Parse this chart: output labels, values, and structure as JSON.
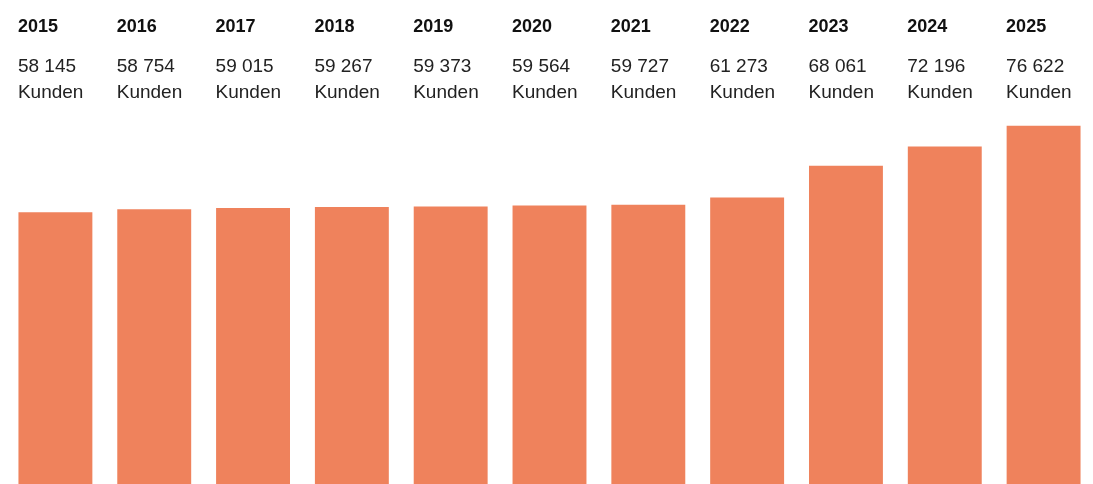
{
  "chart_data": {
    "type": "bar",
    "categories": [
      "2015",
      "2016",
      "2017",
      "2018",
      "2019",
      "2020",
      "2021",
      "2022",
      "2023",
      "2024",
      "2025"
    ],
    "values": [
      58145,
      58754,
      59015,
      59267,
      59373,
      59564,
      59727,
      61273,
      68061,
      72196,
      76622
    ],
    "value_labels": [
      "58 145 Kunden",
      "58 754 Kunden",
      "59 015 Kunden",
      "59 267 Kunden",
      "59 373 Kunden",
      "59 564 Kunden",
      "59 727 Kunden",
      "61 273 Kunden",
      "68 061 Kunden",
      "72 196 Kunden",
      "76 622 Kunden"
    ],
    "color": "#ef825c"
  }
}
